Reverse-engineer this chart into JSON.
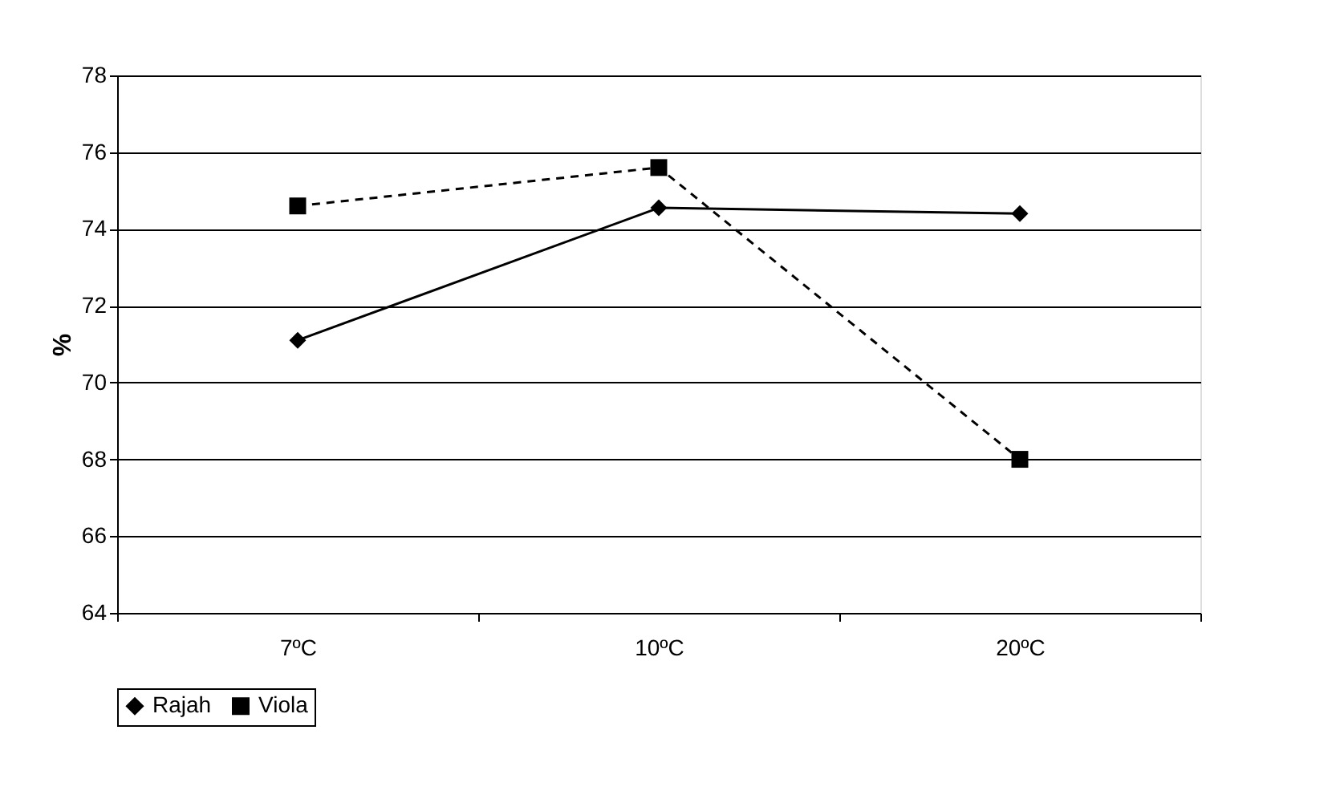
{
  "chart_data": {
    "type": "line",
    "ylabel": "%",
    "categories": [
      "7ºC",
      "10ºC",
      "20ºC"
    ],
    "series": [
      {
        "name": "Rajah",
        "color": "#000000",
        "marker": "diamond",
        "line_style": "solid",
        "values": [
          71.1,
          74.55,
          74.4
        ]
      },
      {
        "name": "Viola",
        "color": "#000000",
        "marker": "square",
        "line_style": "dashed",
        "values": [
          74.6,
          75.6,
          68.0
        ]
      }
    ],
    "ylim": [
      64,
      78
    ],
    "yticks": [
      64,
      66,
      68,
      70,
      72,
      74,
      76,
      78
    ],
    "grid": "y",
    "legend": "bottom"
  }
}
